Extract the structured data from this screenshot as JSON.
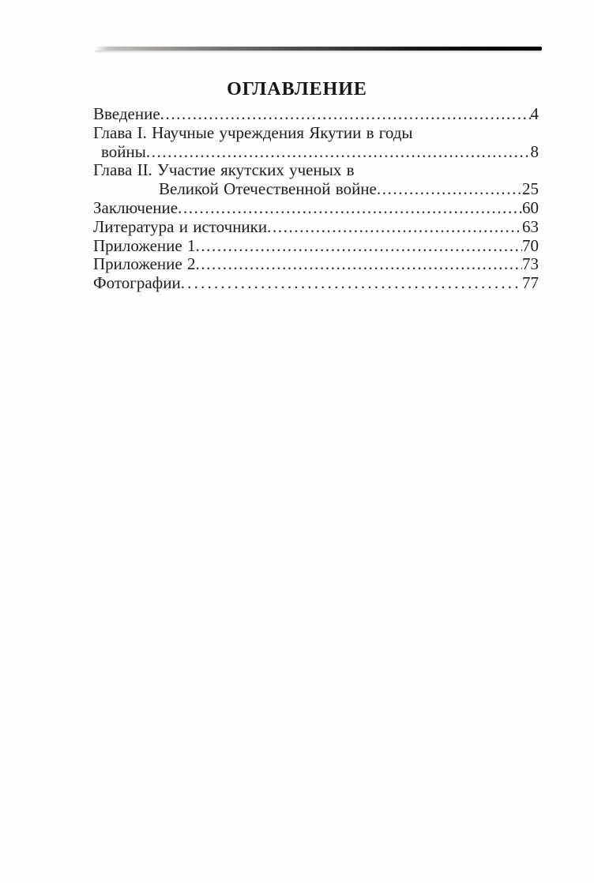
{
  "document": {
    "title": "ОГЛАВЛЕНИЕ",
    "language": "Russian",
    "kind": "table-of-contents-scanned-page"
  },
  "toc": {
    "leader_char": ".",
    "entries": [
      {
        "lines": [
          "Введение"
        ],
        "page": "4"
      },
      {
        "lines": [
          "Глава I.  Научные учреждения Якутии в годы",
          "войны"
        ],
        "page": "8"
      },
      {
        "lines": [
          "Глава II. Участие якутских ученых в",
          "Великой Отечественной войне"
        ],
        "page": "25"
      },
      {
        "lines": [
          "Заключение"
        ],
        "page": "60"
      },
      {
        "lines": [
          "Литература и источники"
        ],
        "page": "63"
      },
      {
        "lines": [
          "Приложение 1"
        ],
        "page": "70"
      },
      {
        "lines": [
          "Приложение 2"
        ],
        "page": "73"
      },
      {
        "lines": [
          "Фотографии"
        ],
        "page": "77"
      }
    ]
  },
  "colors": {
    "paper": "#fefefe",
    "ink": "#1d1d1d",
    "rule_dark": "#000000"
  }
}
